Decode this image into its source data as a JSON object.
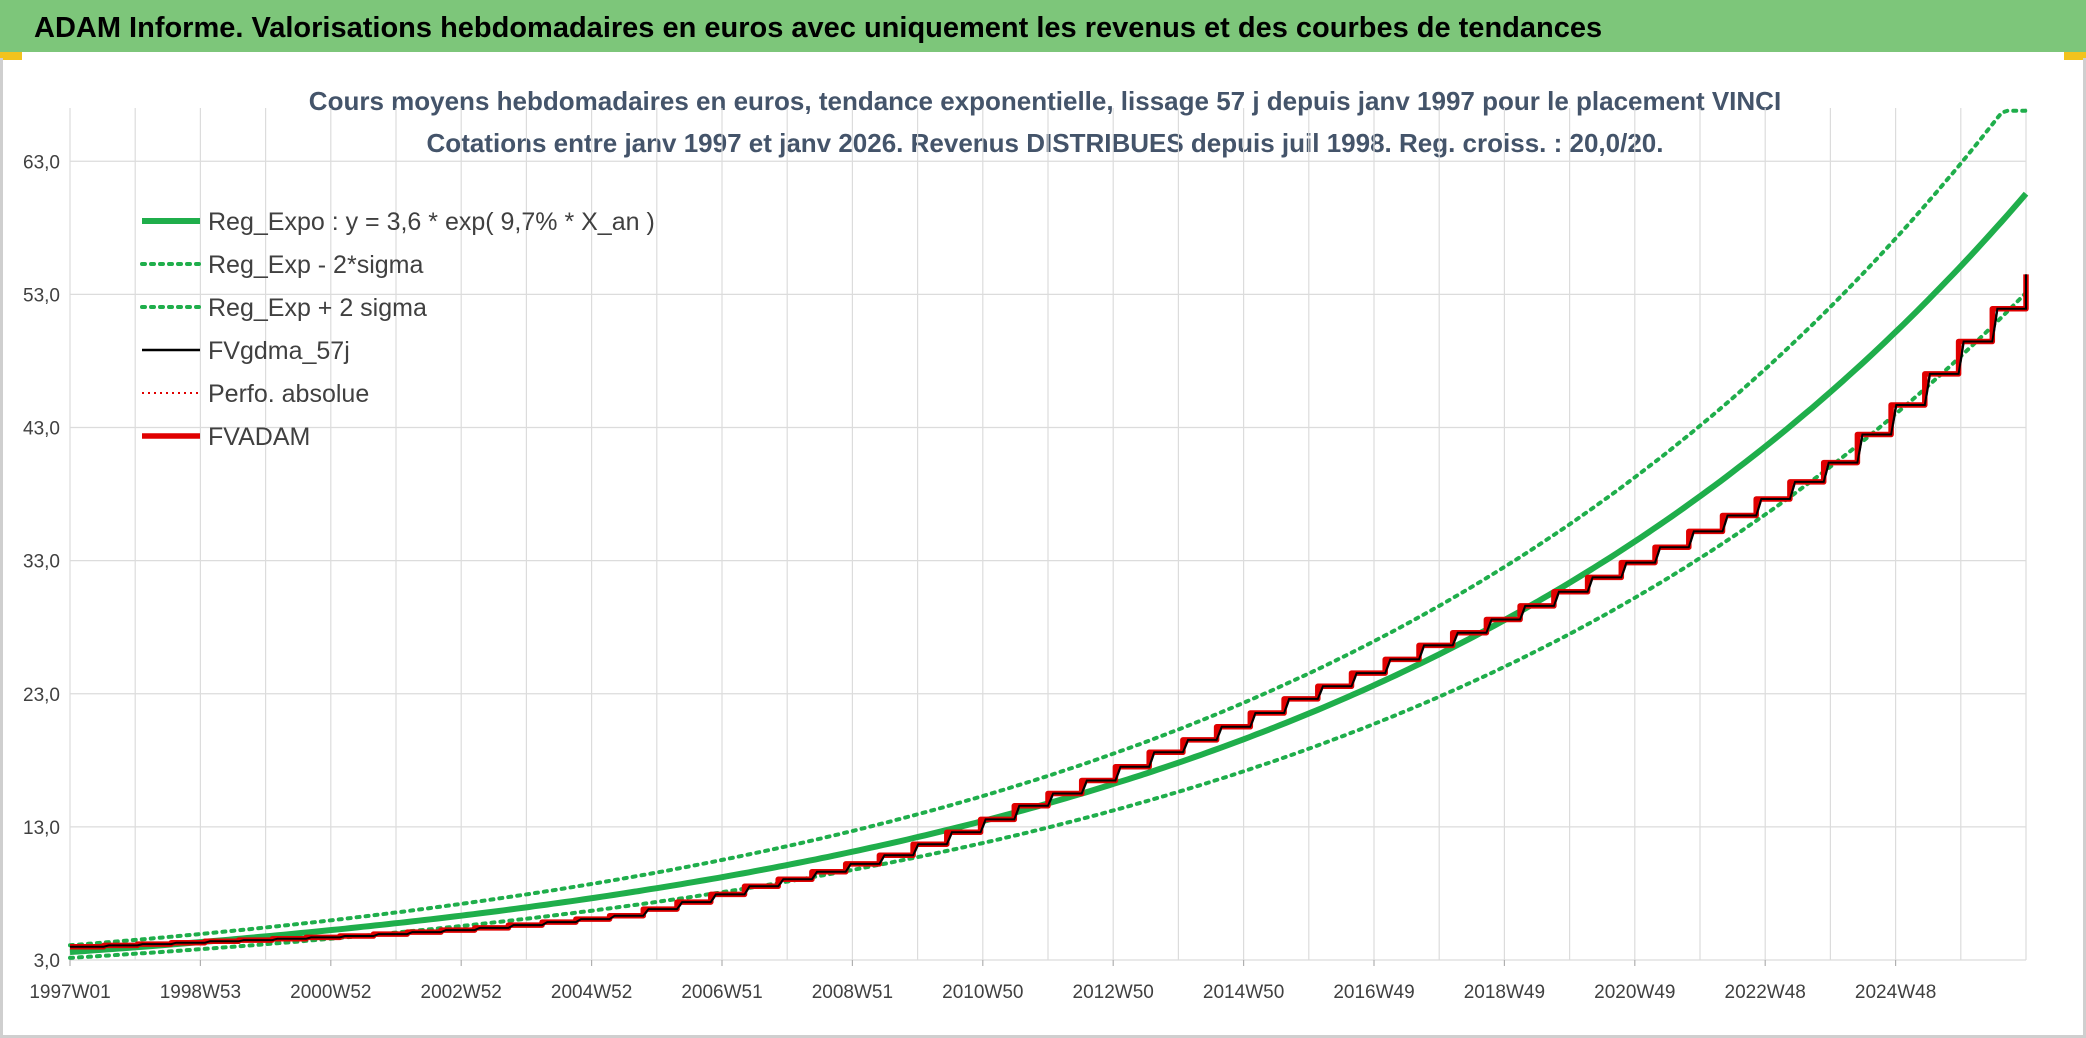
{
  "banner": {
    "title": "ADAM Informe. Valorisations hebdomadaires en euros avec uniquement les revenus et des courbes de tendances"
  },
  "colors": {
    "banner_bg": "#7dc67a",
    "trend_green": "#1fae4b",
    "fv_black": "#000000",
    "adam_red": "#e00000",
    "grid": "#dcdcdc"
  },
  "chart_data": {
    "type": "line",
    "title": "Cours moyens hebdomadaires en euros, tendance exponentielle, lissage 57 j depuis janv 1997 pour le placement VINCI",
    "subtitle": "Cotations entre janv 1997 et janv 2026. Revenus DISTRIBUES depuis juil 1998. Reg. croiss. : 20,0/20.",
    "x_tick_labels": [
      "1997W01",
      "1998W53",
      "2000W52",
      "2002W52",
      "2004W52",
      "2006W51",
      "2008W51",
      "2010W50",
      "2012W50",
      "2014W50",
      "2016W49",
      "2018W49",
      "2020W49",
      "2022W48",
      "2024W48"
    ],
    "y_tick_labels": [
      "3,0",
      "13,0",
      "23,0",
      "33,0",
      "43,0",
      "53,0",
      "63,0"
    ],
    "x_range": [
      1997.0,
      2026.1
    ],
    "ylim": [
      3.0,
      67.0
    ],
    "grid": true,
    "legend_position": "top-left",
    "trend": {
      "a": 3.6,
      "rate": 0.097,
      "sigma_factor": 1.14,
      "start_year": 1997.0
    },
    "series": [
      {
        "name": "Reg_Expo : y = 3,6 * exp( 9,7% *  X_an )",
        "style": "solid-thick",
        "color": "#1fae4b",
        "x": [
          1997,
          1999,
          2001,
          2003,
          2005,
          2007,
          2009,
          2011,
          2013,
          2015,
          2017,
          2019,
          2021,
          2023,
          2025,
          2026.1
        ],
        "values": [
          3.6,
          4.4,
          5.3,
          6.4,
          7.8,
          9.5,
          11.5,
          13.9,
          16.9,
          20.4,
          24.8,
          30.0,
          36.4,
          44.1,
          53.5,
          59.6
        ]
      },
      {
        "name": "Reg_Exp - 2*sigma",
        "style": "dotted",
        "color": "#1fae4b",
        "x": [
          1997,
          1999,
          2001,
          2003,
          2005,
          2007,
          2009,
          2011,
          2013,
          2015,
          2017,
          2019,
          2021,
          2023,
          2025,
          2026.1
        ],
        "values": [
          3.2,
          3.9,
          4.7,
          5.6,
          6.8,
          8.3,
          10.1,
          12.2,
          14.8,
          17.9,
          21.7,
          26.3,
          31.9,
          38.7,
          46.9,
          52.3
        ]
      },
      {
        "name": "Reg_Exp + 2 sigma",
        "style": "dotted",
        "color": "#1fae4b",
        "x": [
          1997,
          1999,
          2001,
          2003,
          2005,
          2007,
          2009,
          2011,
          2013,
          2015,
          2017,
          2019,
          2021,
          2023,
          2025,
          2026.1
        ],
        "values": [
          4.1,
          5.0,
          6.0,
          7.3,
          8.9,
          10.8,
          13.1,
          15.9,
          19.3,
          23.3,
          28.3,
          34.2,
          41.5,
          50.3,
          61.0,
          67.9
        ]
      },
      {
        "name": "FVgdma_57j",
        "style": "solid",
        "color": "#000000",
        "x": [
          1997,
          1999,
          2001,
          2003,
          2005,
          2007,
          2009,
          2011,
          2013,
          2015,
          2017,
          2019,
          2021,
          2023,
          2025,
          2026.1
        ],
        "values": [
          4.0,
          4.4,
          4.8,
          5.4,
          6.3,
          8.5,
          10.8,
          14.5,
          18.5,
          22.5,
          26.5,
          30.5,
          35.0,
          40.0,
          49.0,
          54.5
        ]
      },
      {
        "name": "Perfo. absolue",
        "style": "dotted-thin",
        "color": "#e00000",
        "x": [
          1997,
          1999,
          2001,
          2003,
          2005,
          2007,
          2009,
          2011,
          2013,
          2015,
          2017,
          2019,
          2021,
          2023,
          2025,
          2026.1
        ],
        "values": [
          4.0,
          4.4,
          4.8,
          5.4,
          6.3,
          8.5,
          10.8,
          14.5,
          18.5,
          22.5,
          26.5,
          30.5,
          35.0,
          40.0,
          49.0,
          54.5
        ]
      },
      {
        "name": "FVADAM",
        "style": "step-thick",
        "color": "#e00000",
        "x": [
          1997,
          1999,
          2001,
          2003,
          2005,
          2007,
          2009,
          2011,
          2013,
          2015,
          2017,
          2019,
          2021,
          2023,
          2025,
          2026.1
        ],
        "values": [
          4.0,
          4.4,
          4.8,
          5.4,
          6.3,
          8.5,
          10.8,
          14.5,
          18.5,
          22.5,
          26.5,
          30.5,
          35.0,
          40.0,
          49.0,
          54.5
        ]
      }
    ]
  }
}
